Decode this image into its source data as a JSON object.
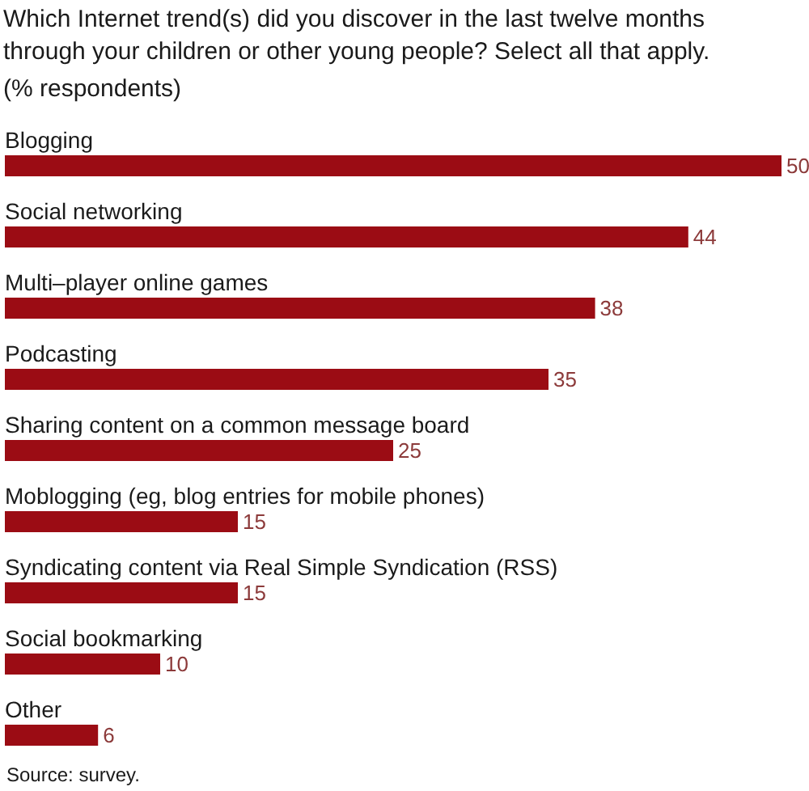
{
  "chart_data": {
    "type": "bar",
    "orientation": "horizontal",
    "title": "Which Internet trend(s) did you discover in the last twelve months through your children or other young people? Select all that apply.",
    "subtitle": "(% respondents)",
    "categories": [
      "Blogging",
      "Social networking",
      "Multi–player online games",
      "Podcasting",
      "Sharing content on a common message board",
      "Moblogging (eg, blog entries for mobile phones)",
      "Syndicating content via Real Simple Syndication (RSS)",
      "Social bookmarking",
      "Other"
    ],
    "values": [
      50,
      44,
      38,
      35,
      25,
      15,
      15,
      10,
      6
    ],
    "color": "#9b0c14",
    "data_labels": true,
    "annotations": [
      "Source: survey."
    ]
  }
}
